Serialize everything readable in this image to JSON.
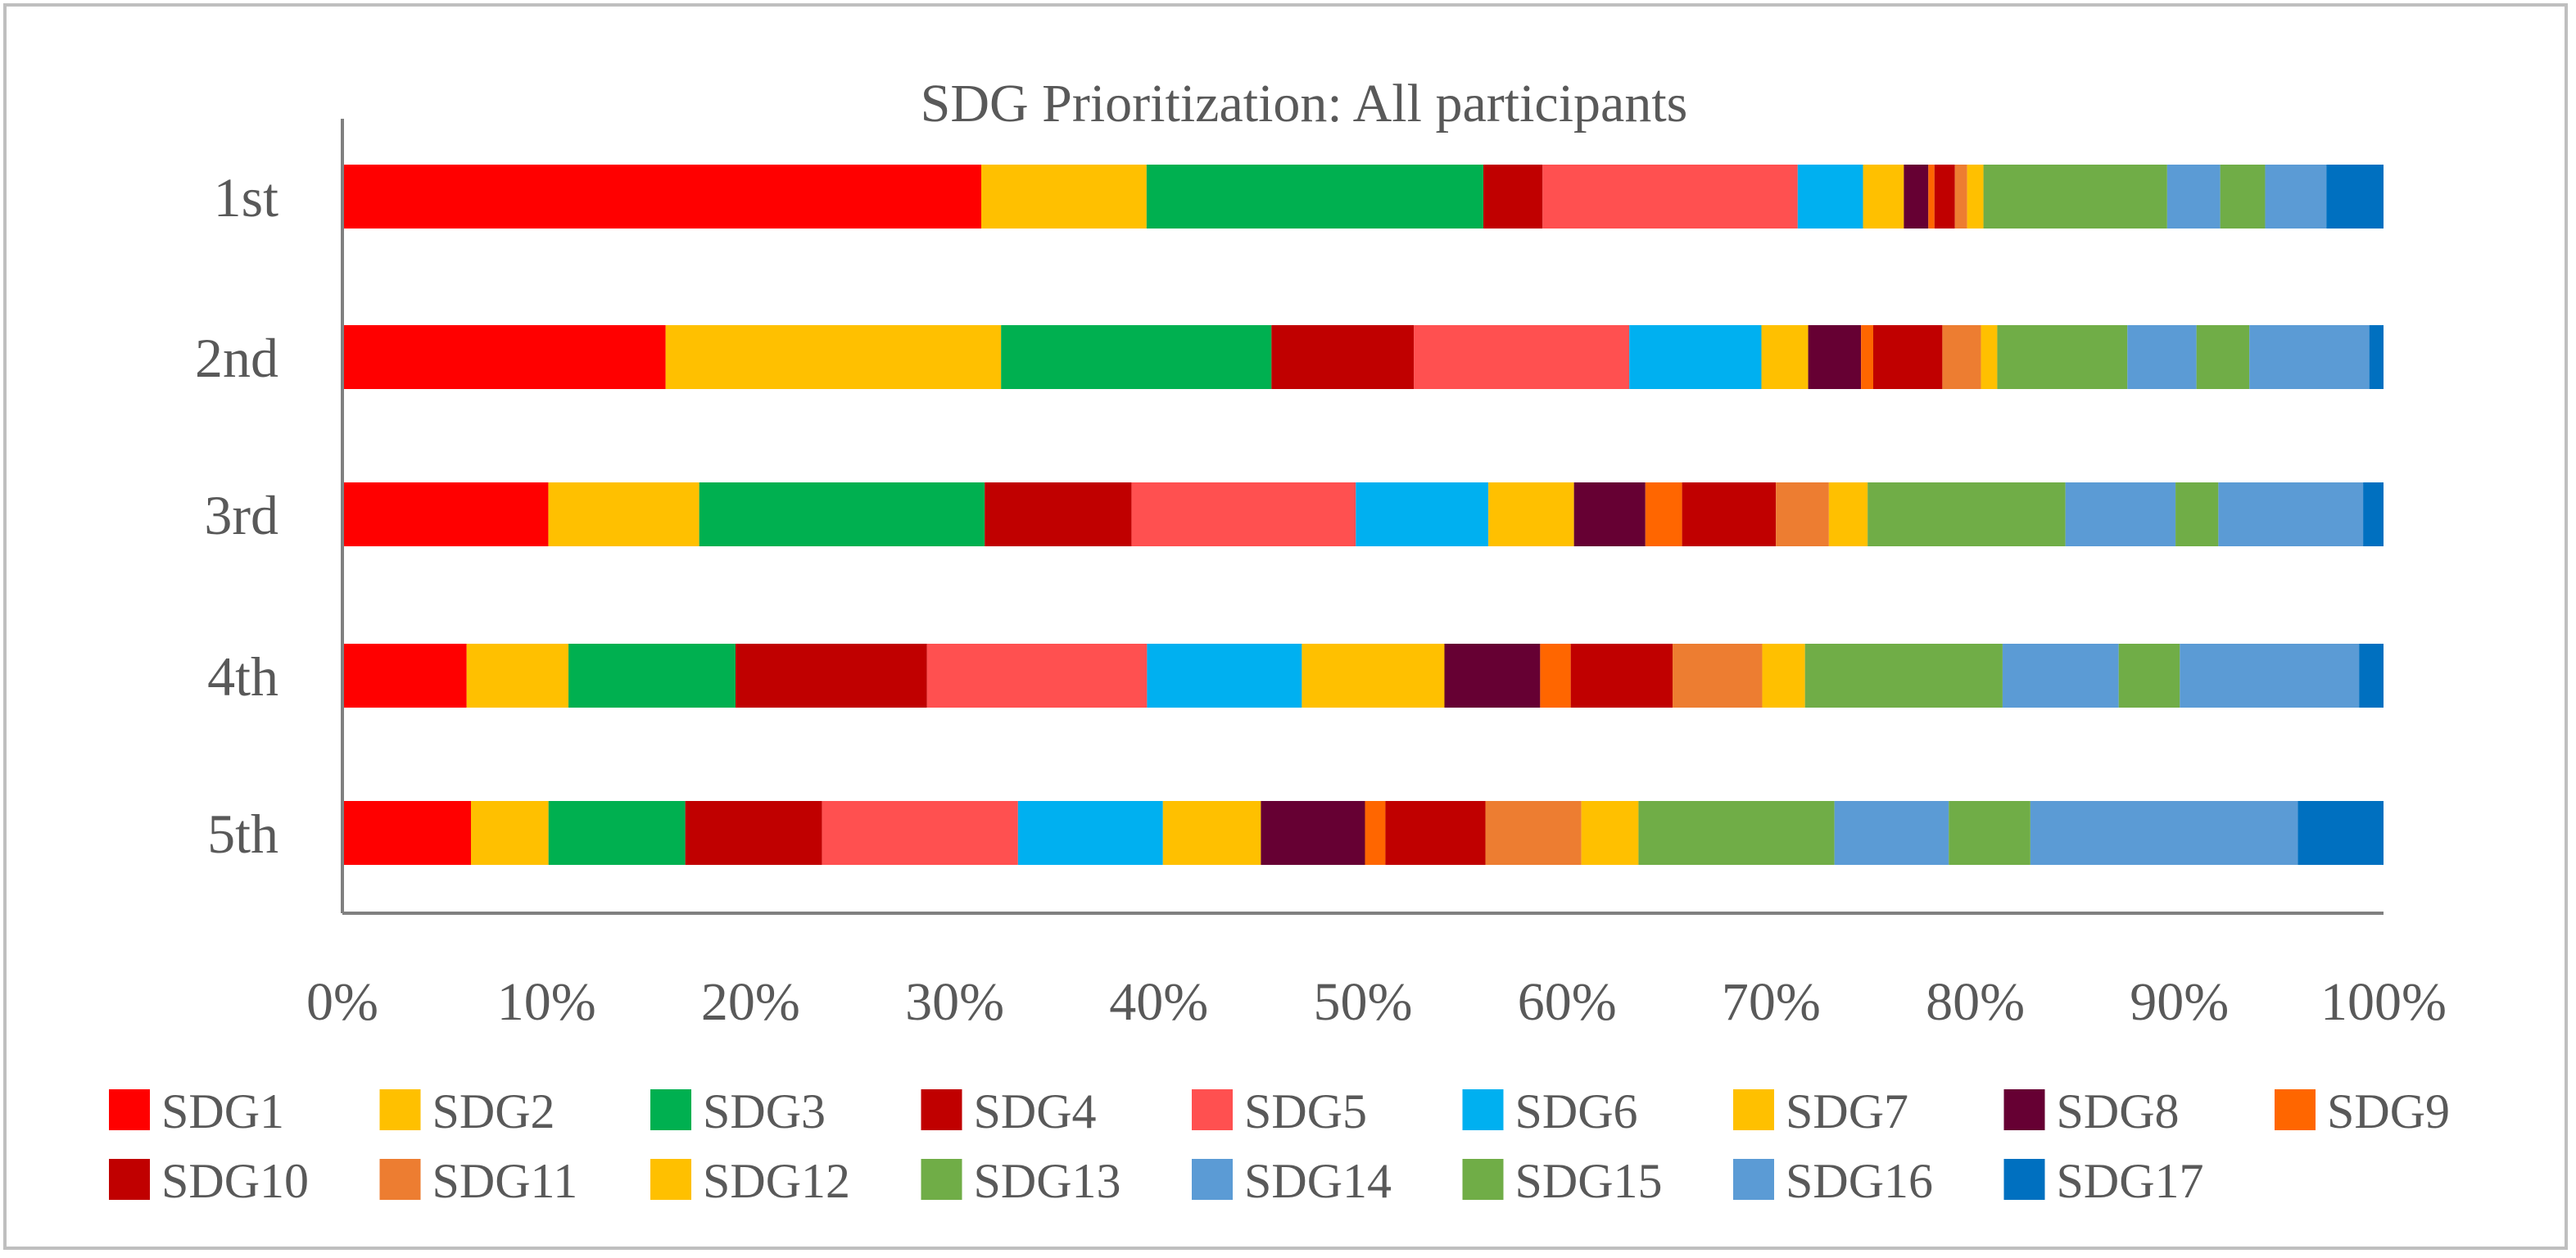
{
  "chart_data": {
    "type": "bar",
    "stacked": "100%",
    "orientation": "horizontal",
    "title": "SDG Prioritization: All participants",
    "xlabel": "",
    "ylabel": "",
    "xlim": [
      0,
      100
    ],
    "x_tick_labels": [
      "0%",
      "10%",
      "20%",
      "30%",
      "40%",
      "50%",
      "60%",
      "70%",
      "80%",
      "90%",
      "100%"
    ],
    "categories": [
      "1st",
      "2nd",
      "3rd",
      "4th",
      "5th"
    ],
    "legend_position": "bottom",
    "series": [
      {
        "name": "SDG1",
        "color": "#FF0000",
        "values": [
          31.3,
          15.9,
          10.1,
          6.1,
          6.3
        ]
      },
      {
        "name": "SDG2",
        "color": "#FFC000",
        "values": [
          8.1,
          16.5,
          7.4,
          5.0,
          3.8
        ]
      },
      {
        "name": "SDG3",
        "color": "#00B050",
        "values": [
          16.5,
          13.3,
          14.0,
          8.2,
          6.7
        ]
      },
      {
        "name": "SDG4",
        "color": "#C00000",
        "values": [
          2.9,
          7.0,
          7.2,
          9.4,
          6.7
        ]
      },
      {
        "name": "SDG5",
        "color": "#FF5050",
        "values": [
          12.5,
          10.6,
          11.0,
          10.8,
          9.6
        ]
      },
      {
        "name": "SDG6",
        "color": "#00B0F0",
        "values": [
          3.2,
          6.5,
          6.5,
          7.6,
          7.1
        ]
      },
      {
        "name": "SDG7",
        "color": "#FFC000",
        "values": [
          2.0,
          2.3,
          4.2,
          7.0,
          4.8
        ]
      },
      {
        "name": "SDG8",
        "color": "#660033",
        "values": [
          1.2,
          2.6,
          3.5,
          4.7,
          5.1
        ]
      },
      {
        "name": "SDG9",
        "color": "#FF6600",
        "values": [
          0.3,
          0.6,
          1.8,
          1.5,
          1.0
        ]
      },
      {
        "name": "SDG10",
        "color": "#C00000",
        "values": [
          1.0,
          3.4,
          4.6,
          5.0,
          4.9
        ]
      },
      {
        "name": "SDG11",
        "color": "#ED7D31",
        "values": [
          0.6,
          1.9,
          2.6,
          4.4,
          4.7
        ]
      },
      {
        "name": "SDG12",
        "color": "#FFC000",
        "values": [
          0.8,
          0.8,
          1.9,
          2.1,
          2.8
        ]
      },
      {
        "name": "SDG13",
        "color": "#70AD47",
        "values": [
          9.0,
          6.4,
          9.7,
          9.7,
          9.6
        ]
      },
      {
        "name": "SDG14",
        "color": "#5B9BD5",
        "values": [
          2.6,
          3.4,
          5.4,
          5.7,
          5.6
        ]
      },
      {
        "name": "SDG15",
        "color": "#70AD47",
        "values": [
          2.2,
          2.6,
          2.1,
          3.0,
          4.0
        ]
      },
      {
        "name": "SDG16",
        "color": "#5B9BD5",
        "values": [
          3.0,
          5.9,
          7.1,
          8.8,
          13.1
        ]
      },
      {
        "name": "SDG17",
        "color": "#0070C0",
        "values": [
          2.8,
          0.7,
          1.0,
          1.2,
          4.2
        ]
      }
    ]
  }
}
